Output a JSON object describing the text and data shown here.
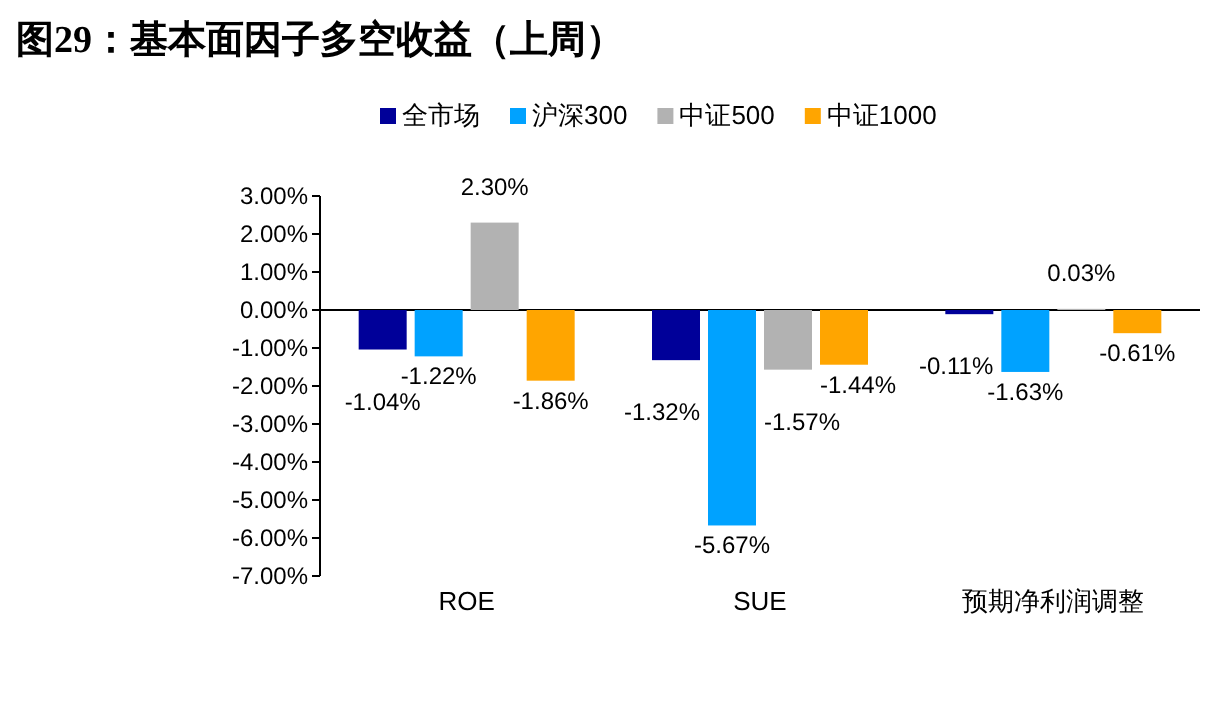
{
  "chart_data": {
    "type": "bar",
    "title": "图29：基本面因子多空收益（上周）",
    "categories": [
      "ROE",
      "SUE",
      "预期净利润调整"
    ],
    "series": [
      {
        "name": "全市场",
        "color": "#000099",
        "values": [
          -1.04,
          -1.32,
          -0.11
        ],
        "value_labels": [
          "-1.04%",
          "-1.32%",
          "-0.11%"
        ]
      },
      {
        "name": "沪深300",
        "color": "#00a2ff",
        "values": [
          -1.22,
          -5.67,
          -1.63
        ],
        "value_labels": [
          "-1.22%",
          "-5.67%",
          "-1.63%"
        ]
      },
      {
        "name": "中证500",
        "color": "#b2b2b2",
        "values": [
          2.3,
          -1.57,
          0.03
        ],
        "value_labels": [
          "2.30%",
          "-1.57%",
          "0.03%"
        ]
      },
      {
        "name": "中证1000",
        "color": "#ffa500",
        "values": [
          -1.86,
          -1.44,
          -0.61
        ],
        "value_labels": [
          "-1.86%",
          "-1.44%",
          "-0.61%"
        ]
      }
    ],
    "ylim": [
      -7,
      3
    ],
    "yticks": [
      {
        "value": 3,
        "label": "3.00%"
      },
      {
        "value": 2,
        "label": "2.00%"
      },
      {
        "value": 1,
        "label": "1.00%"
      },
      {
        "value": 0,
        "label": "0.00%"
      },
      {
        "value": -1,
        "label": "-1.00%"
      },
      {
        "value": -2,
        "label": "-2.00%"
      },
      {
        "value": -3,
        "label": "-3.00%"
      },
      {
        "value": -4,
        "label": "-4.00%"
      },
      {
        "value": -5,
        "label": "-5.00%"
      },
      {
        "value": -6,
        "label": "-6.00%"
      },
      {
        "value": -7,
        "label": "-7.00%"
      }
    ],
    "legend": "top"
  }
}
